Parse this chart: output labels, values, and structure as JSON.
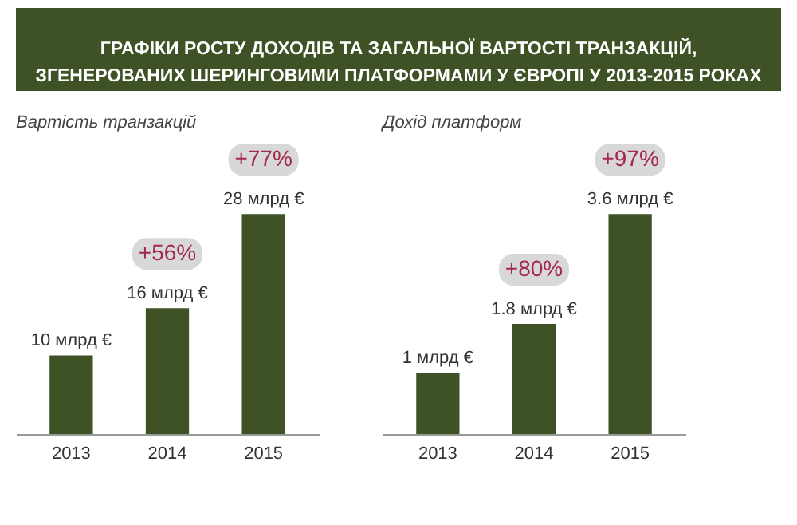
{
  "chart_data": [
    {
      "type": "bar",
      "title": "Вартість транзакцій",
      "categories": [
        "2013",
        "2014",
        "2015"
      ],
      "values": [
        10,
        16,
        28
      ],
      "color": "#3e5226",
      "value_labels": [
        "10 млрд €",
        "16 млрд €",
        "28 млрд €"
      ],
      "annotations": [
        "ГРАФІКИ РОСТУ ДОХОДІВ ТА ЗАГАЛЬНОЇ ВАРТОСТІ ТРАНЗАКЦІЙ, ЗГЕНЕРОВАНИХ ШЕРИНГОВИМИ ПЛАТФОРМАМИ У ЄВРОПІ У 2013-2015 РОКАХ",
        {
          "text": "+56%",
          "x": "2014",
          "y": 16
        },
        {
          "text": "+77%",
          "x": "2015",
          "y": 28
        }
      ]
    },
    {
      "type": "bar",
      "title": "Дохід платформ",
      "categories": [
        "2013",
        "2014",
        "2015"
      ],
      "values": [
        1,
        1.8,
        3.6
      ],
      "color": "#3e5226",
      "value_labels": [
        "1 млрд €",
        "1.8 млрд €",
        "3.6 млрд €"
      ],
      "annotations": [
        {
          "text": "+80%",
          "x": "2014",
          "y": 1.8
        },
        {
          "text": "+97%",
          "x": "2015",
          "y": 3.6
        }
      ]
    }
  ]
}
